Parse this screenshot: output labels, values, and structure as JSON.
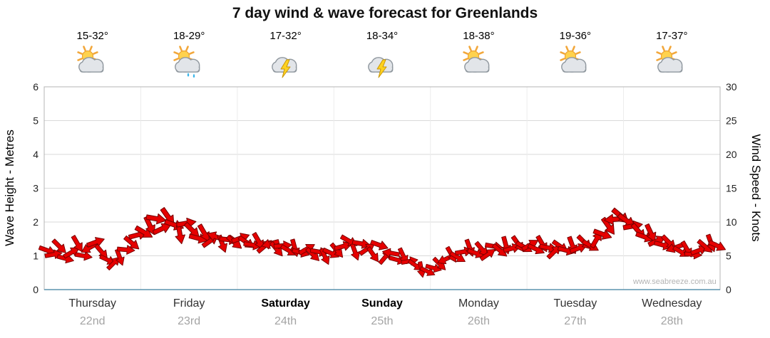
{
  "title": "7 day wind & wave forecast for Greenlands",
  "watermark": "www.seabreeze.com.au",
  "days": [
    {
      "name": "Thursday",
      "date": "22nd",
      "temp": "15-32°",
      "icon": "partly-cloudy",
      "bold": false
    },
    {
      "name": "Friday",
      "date": "23rd",
      "temp": "18-29°",
      "icon": "partly-cloudy-showers",
      "bold": false
    },
    {
      "name": "Saturday",
      "date": "24th",
      "temp": "17-32°",
      "icon": "thunderstorm",
      "bold": true
    },
    {
      "name": "Sunday",
      "date": "25th",
      "temp": "18-34°",
      "icon": "thunderstorm",
      "bold": true
    },
    {
      "name": "Monday",
      "date": "26th",
      "temp": "18-38°",
      "icon": "partly-cloudy",
      "bold": false
    },
    {
      "name": "Tuesday",
      "date": "27th",
      "temp": "19-36°",
      "icon": "partly-cloudy",
      "bold": false
    },
    {
      "name": "Wednesday",
      "date": "28th",
      "temp": "17-37°",
      "icon": "partly-cloudy",
      "bold": false
    }
  ],
  "left_axis": {
    "label": "Wave Height - Metres",
    "ticks": [
      0,
      1,
      2,
      3,
      4,
      5,
      6
    ],
    "range": [
      0,
      6
    ]
  },
  "right_axis": {
    "label": "Wind Speed - Knots",
    "ticks": [
      0,
      5,
      10,
      15,
      20,
      25,
      30
    ],
    "range": [
      0,
      30
    ]
  },
  "chart_data": {
    "type": "scatter",
    "marker": "directional-arrow",
    "title": "7 day wind & wave forecast for Greenlands",
    "xcategories": [
      "Thursday 22nd",
      "Friday 23rd",
      "Saturday 24th",
      "Sunday 25th",
      "Monday 26th",
      "Tuesday 27th",
      "Wednesday 28th"
    ],
    "points_per_day": 16,
    "ylabel_left": "Wave Height - Metres",
    "ylabel_right": "Wind Speed - Knots",
    "ylim_left_metres": [
      0,
      6
    ],
    "ylim_right_knots": [
      0,
      30
    ],
    "grid": "horizontal",
    "legend": "none",
    "arrow_color": "#e60000",
    "arrow_outline": "#7a0000",
    "wind_speed_knots": [
      5.8,
      5.2,
      6.4,
      4.6,
      5.5,
      6.8,
      5.0,
      6.2,
      7.0,
      5.6,
      4.4,
      3.9,
      4.8,
      5.9,
      6.9,
      8.1,
      8.5,
      9.5,
      10.5,
      9.0,
      10.8,
      9.6,
      8.2,
      9.8,
      8.8,
      7.6,
      8.4,
      7.2,
      7.8,
      6.8,
      7.4,
      7.0,
      7.6,
      7.0,
      6.6,
      7.2,
      6.4,
      6.8,
      6.0,
      6.5,
      5.8,
      6.2,
      5.5,
      6.0,
      5.2,
      5.6,
      4.9,
      5.4,
      5.8,
      6.4,
      7.2,
      5.6,
      6.8,
      6.0,
      5.2,
      6.6,
      4.8,
      5.4,
      4.4,
      5.0,
      4.2,
      3.6,
      3.0,
      2.7,
      3.2,
      3.8,
      4.5,
      5.2,
      4.8,
      5.6,
      6.2,
      5.4,
      6.0,
      5.2,
      6.4,
      5.8,
      6.6,
      6.1,
      6.8,
      6.3,
      6.6,
      6.0,
      6.8,
      6.2,
      5.6,
      6.4,
      5.8,
      6.6,
      6.1,
      7.0,
      6.5,
      7.4,
      8.2,
      9.4,
      10.4,
      10.9,
      10.2,
      9.4,
      8.6,
      7.8,
      8.4,
      7.2,
      6.6,
      7.0,
      6.2,
      5.6,
      6.0,
      5.2,
      5.8,
      6.4,
      6.9,
      6.5
    ],
    "wind_dir_deg": [
      20,
      -10,
      45,
      15,
      -30,
      60,
      10,
      150,
      -20,
      50,
      25,
      -45,
      70,
      5,
      40,
      -15,
      30,
      65,
      10,
      -25,
      55,
      20,
      80,
      -10,
      45,
      15,
      60,
      -35,
      200,
      70,
      5,
      40,
      -20,
      35,
      10,
      60,
      -40,
      165,
      50,
      -5,
      30,
      75,
      15,
      -30,
      45,
      10,
      65,
      25,
      50,
      -15,
      30,
      70,
      10,
      -35,
      55,
      20,
      -50,
      190,
      15,
      65,
      -10,
      35,
      80,
      25,
      15,
      45,
      155,
      60,
      30,
      -10,
      70,
      20,
      50,
      -35,
      10,
      40,
      75,
      -15,
      55,
      30,
      -30,
      25,
      60,
      10,
      -45,
      35,
      15,
      70,
      -20,
      45,
      30,
      -60,
      20,
      55,
      175,
      40,
      35,
      -10,
      50,
      20,
      65,
      -25,
      15,
      45,
      160,
      30,
      60,
      5,
      -20,
      40,
      70,
      25
    ]
  }
}
